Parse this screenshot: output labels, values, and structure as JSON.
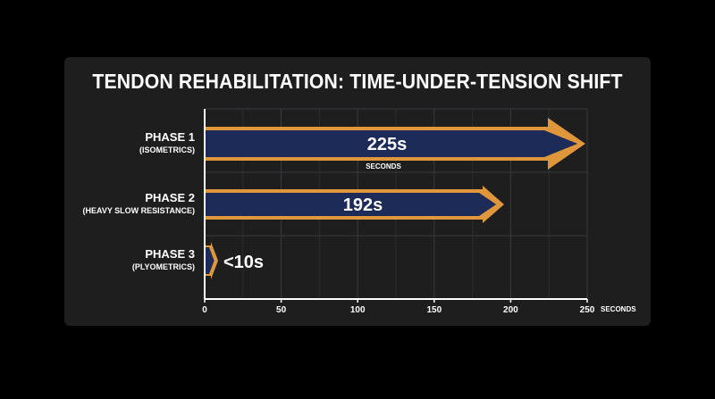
{
  "chart_data": {
    "type": "bar",
    "orientation": "horizontal",
    "title": "TENDON REHABILITATION: TIME-UNDER-TENSION SHIFT",
    "categories": [
      {
        "name": "PHASE 1",
        "sub": "(ISOMETRICS)"
      },
      {
        "name": "PHASE 2",
        "sub": "(HEAVY SLOW RESISTANCE)"
      },
      {
        "name": "PHASE 3",
        "sub": "(PLYOMETRICS)"
      }
    ],
    "values": [
      225,
      192,
      8
    ],
    "value_labels": [
      "225s",
      "192s",
      "<10s"
    ],
    "bar_note": "SECONDS",
    "x_unit_label": "SECONDS",
    "xlim": [
      0,
      250
    ],
    "xticks": [
      0,
      50,
      100,
      150,
      200,
      250
    ],
    "grid": true,
    "colors": {
      "bar_fill": "#1c2b57",
      "bar_border": "#e0963a",
      "grid": "#3a3a3c",
      "axis": "#ffffff"
    }
  }
}
